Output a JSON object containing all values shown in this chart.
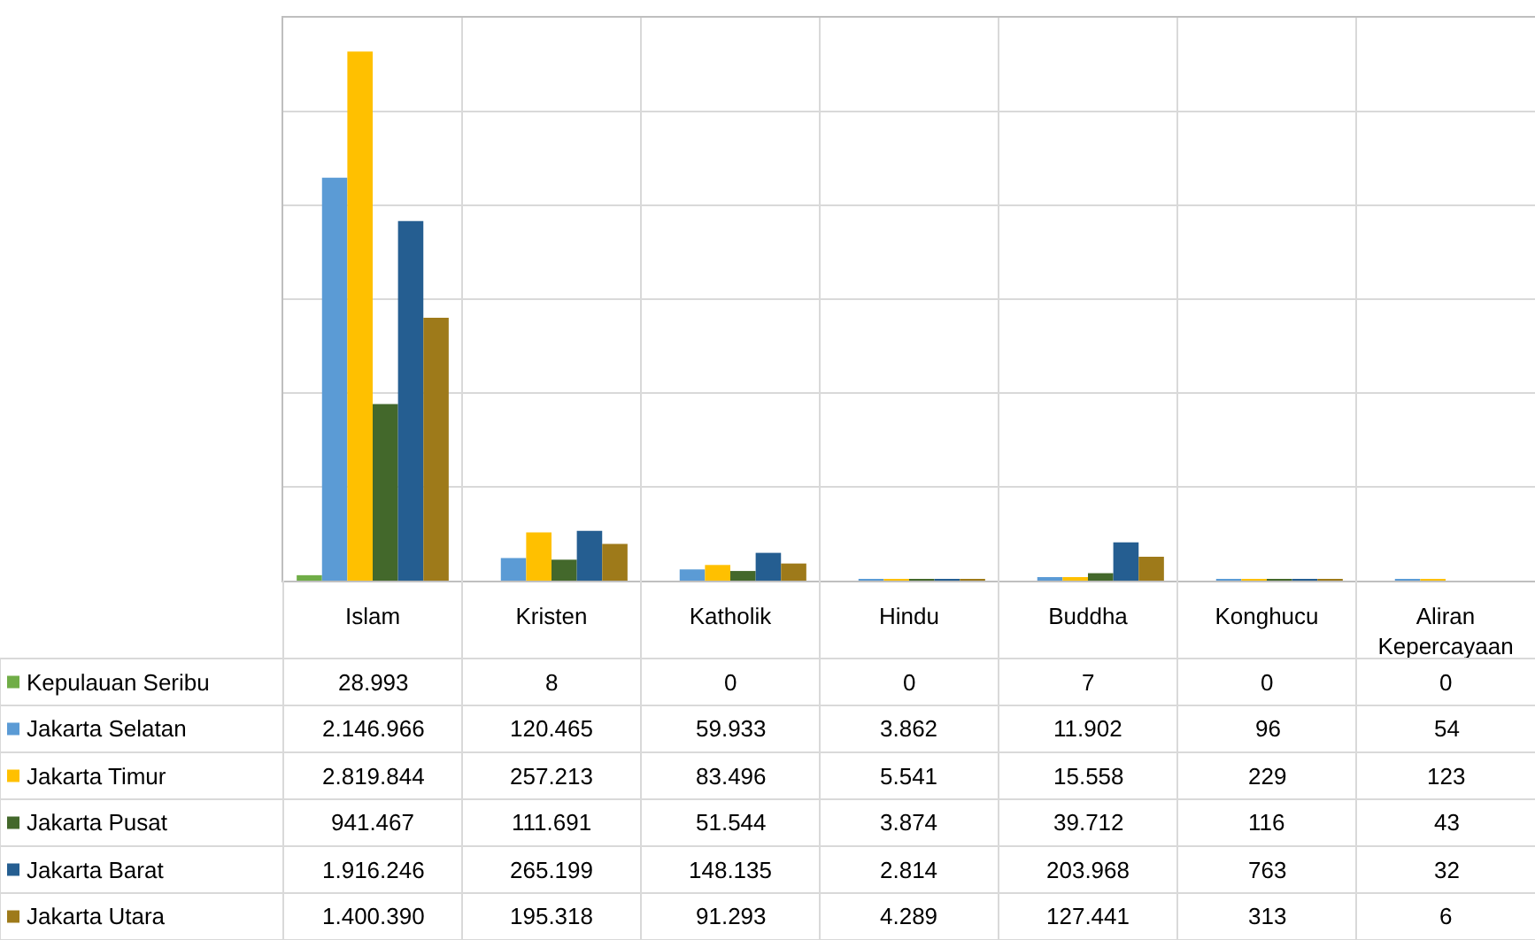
{
  "chart_data": {
    "type": "bar",
    "categories": [
      "Islam",
      "Kristen",
      "Katholik",
      "Hindu",
      "Buddha",
      "Konghucu",
      "Aliran Kepercayaan"
    ],
    "series": [
      {
        "name": "Kepulauan Seribu",
        "color": "#70ad47",
        "values": [
          28993,
          8,
          0,
          0,
          7,
          0,
          0
        ],
        "value_labels": [
          "28.993",
          "8",
          "0",
          "0",
          "7",
          "0",
          "0"
        ]
      },
      {
        "name": "Jakarta Selatan",
        "color": "#5b9bd5",
        "values": [
          2146966,
          120465,
          59933,
          3862,
          11902,
          96,
          54
        ],
        "value_labels": [
          "2.146.966",
          "120.465",
          "59.933",
          "3.862",
          "11.902",
          "96",
          "54"
        ]
      },
      {
        "name": "Jakarta Timur",
        "color": "#ffc000",
        "values": [
          2819844,
          257213,
          83496,
          5541,
          15558,
          229,
          123
        ],
        "value_labels": [
          "2.819.844",
          "257.213",
          "83.496",
          "5.541",
          "15.558",
          "229",
          "123"
        ]
      },
      {
        "name": "Jakarta Pusat",
        "color": "#43682b",
        "values": [
          941467,
          111691,
          51544,
          3874,
          39712,
          116,
          43
        ],
        "value_labels": [
          "941.467",
          "111.691",
          "51.544",
          "3.874",
          "39.712",
          "116",
          "43"
        ]
      },
      {
        "name": "Jakarta Barat",
        "color": "#255e91",
        "values": [
          1916246,
          265199,
          148135,
          2814,
          203968,
          763,
          32
        ],
        "value_labels": [
          "1.916.246",
          "265.199",
          "148.135",
          "2.814",
          "203.968",
          "763",
          "32"
        ]
      },
      {
        "name": "Jakarta Utara",
        "color": "#9e7a1a",
        "values": [
          1400390,
          195318,
          91293,
          4289,
          127441,
          313,
          6
        ],
        "value_labels": [
          "1.400.390",
          "195.318",
          "91.293",
          "4.289",
          "127.441",
          "313",
          "6"
        ]
      }
    ],
    "ylim": [
      0,
      3000000
    ],
    "yticks": [
      {
        "value": 0,
        "label": null
      },
      {
        "value": 500000,
        "label": null
      },
      {
        "value": 1000000,
        "label": null
      },
      {
        "value": 1500000,
        "label": null
      },
      {
        "value": 2000000,
        "label": null
      },
      {
        "value": 2500000,
        "label": null
      },
      {
        "value": 3000000,
        "label": null
      }
    ],
    "grid": true,
    "legend": "bottom left",
    "tick_labels": "x"
  }
}
